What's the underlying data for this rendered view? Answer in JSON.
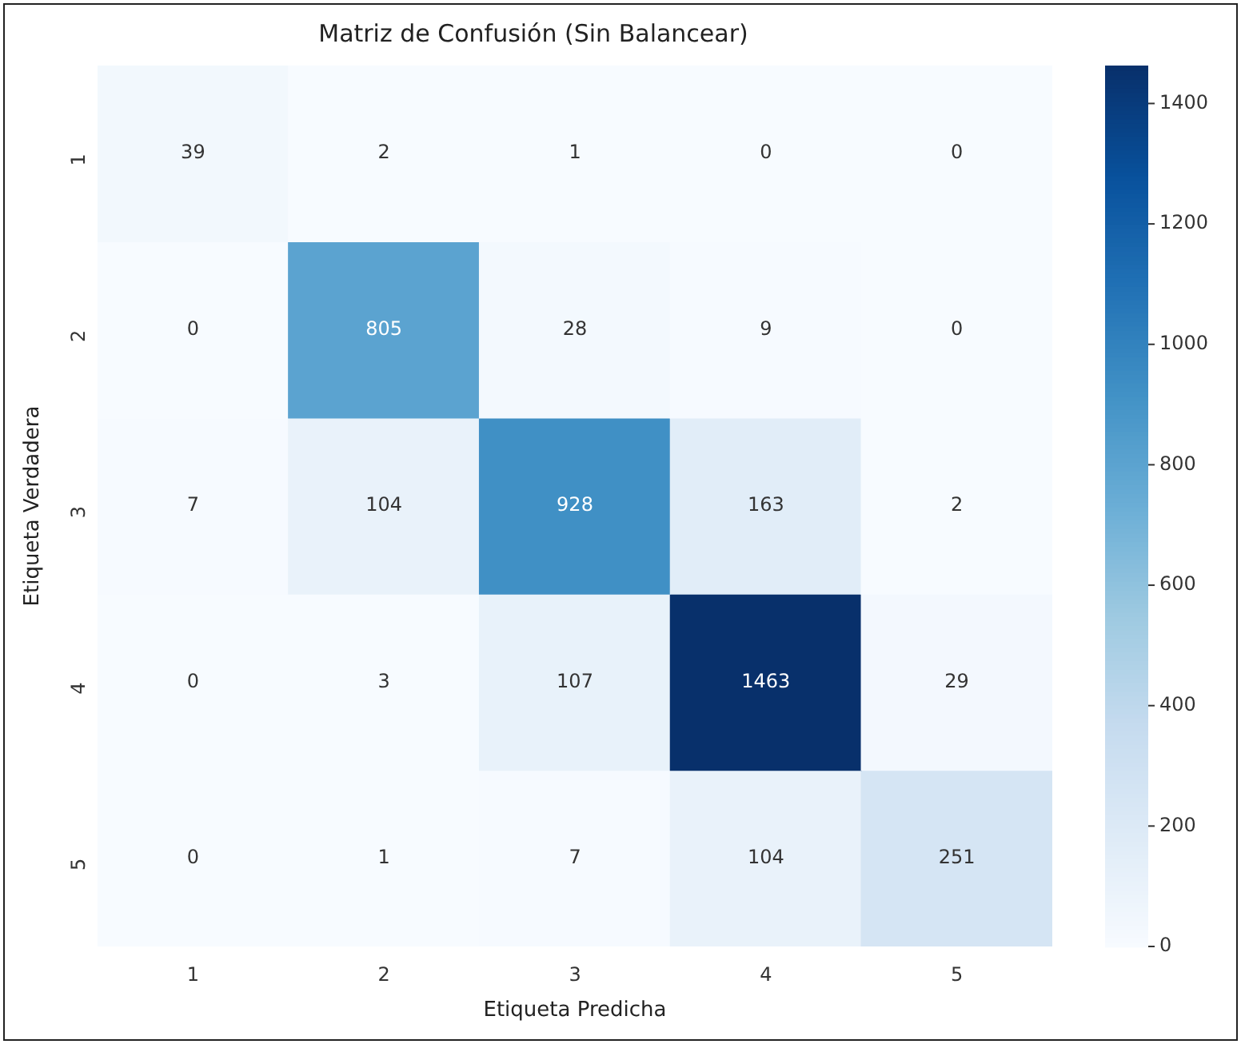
{
  "chart_data": {
    "type": "heatmap",
    "title": "Matriz de Confusión (Sin Balancear)",
    "xlabel": "Etiqueta Predicha",
    "ylabel": "Etiqueta Verdadera",
    "categories": [
      "1",
      "2",
      "3",
      "4",
      "5"
    ],
    "y_categories": [
      "1",
      "2",
      "3",
      "4",
      "5"
    ],
    "cells": [
      [
        39,
        2,
        1,
        0,
        0
      ],
      [
        0,
        805,
        28,
        9,
        0
      ],
      [
        7,
        104,
        928,
        163,
        2
      ],
      [
        0,
        3,
        107,
        1463,
        29
      ],
      [
        0,
        1,
        7,
        104,
        251
      ]
    ],
    "clim": [
      0,
      1463
    ],
    "cticks": [
      0,
      200,
      400,
      600,
      800,
      1000,
      1200,
      1400
    ],
    "data_labels": true
  }
}
